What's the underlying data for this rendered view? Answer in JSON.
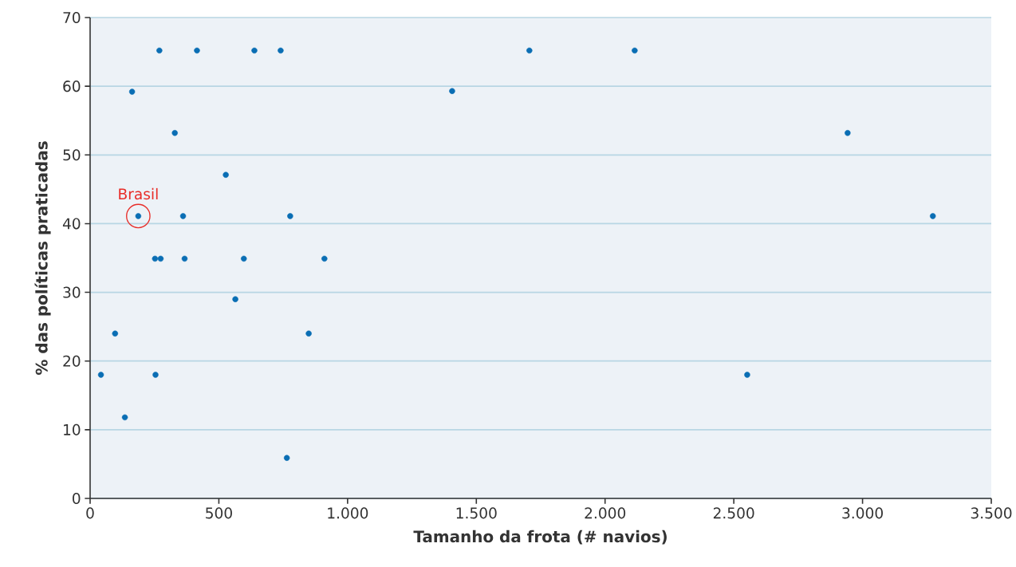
{
  "chart_data": {
    "type": "scatter",
    "xlabel": "Tamanho da frota (# navios)",
    "ylabel": "% das políticas praticadas",
    "x": [
      269,
      415,
      638,
      740,
      1706,
      2115,
      163,
      1406,
      329,
      2942,
      527,
      187,
      361,
      777,
      3273,
      252,
      274,
      367,
      597,
      910,
      564,
      97,
      849,
      42,
      254,
      2552,
      135,
      764
    ],
    "values": [
      65.2,
      65.2,
      65.2,
      65.2,
      65.2,
      65.2,
      59.2,
      59.3,
      53.2,
      53.2,
      47.1,
      41.1,
      41.1,
      41.1,
      41.1,
      34.9,
      34.9,
      34.9,
      34.9,
      34.9,
      29.0,
      24.0,
      24.0,
      18.0,
      18.0,
      18.0,
      11.8,
      5.9
    ],
    "color": "#0a6eb4",
    "marker": "circle",
    "xlim": [
      0,
      3500
    ],
    "ylim": [
      0,
      70
    ],
    "xticks": [
      0,
      500,
      {
        "value": 1000,
        "label": "1.000"
      },
      {
        "value": 1500,
        "label": "1.500"
      },
      {
        "value": 2000,
        "label": "2.000"
      },
      {
        "value": 2500,
        "label": "2.500"
      },
      {
        "value": 3000,
        "label": "3.000"
      },
      {
        "value": 3500,
        "label": "3.500"
      }
    ],
    "yticks": [
      0,
      10,
      20,
      30,
      40,
      50,
      60,
      70
    ],
    "grid": "y",
    "annotations": [
      {
        "text": "Brasil",
        "x": 187,
        "y": 41.1
      }
    ]
  }
}
